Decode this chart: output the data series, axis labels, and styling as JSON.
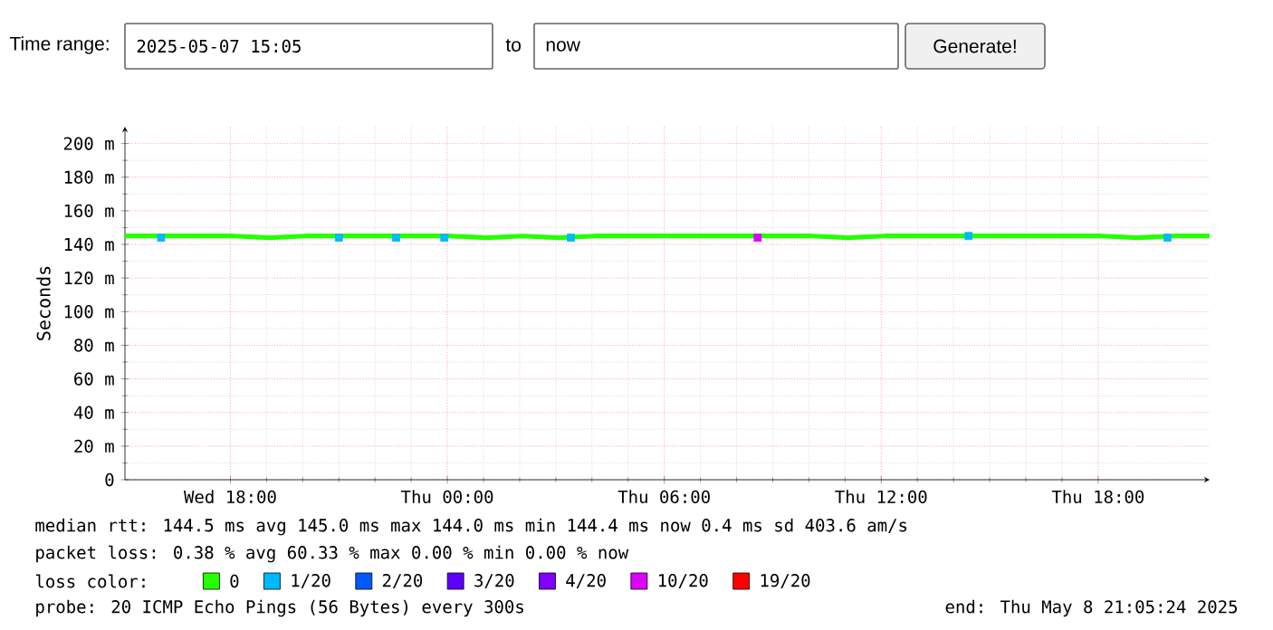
{
  "chart_data": {
    "type": "line",
    "ylabel": "Seconds",
    "legend_title": "loss color:",
    "legend": "bottom",
    "grid": true,
    "xlim": [
      "2025-05-07T15:05",
      "2025-05-08T21:05"
    ],
    "xticks": [
      {
        "value": "2025-05-07T18:00",
        "label": "Wed 18:00"
      },
      {
        "value": "2025-05-08T00:00",
        "label": "Thu 00:00"
      },
      {
        "value": "2025-05-08T06:00",
        "label": "Thu 06:00"
      },
      {
        "value": "2025-05-08T12:00",
        "label": "Thu 12:00"
      },
      {
        "value": "2025-05-08T18:00",
        "label": "Thu 18:00"
      }
    ],
    "ylim": [
      0,
      210
    ],
    "yticks": [
      0,
      {
        "value": 20,
        "label": "20 m"
      },
      {
        "value": 40,
        "label": "40 m"
      },
      {
        "value": 60,
        "label": "60 m"
      },
      {
        "value": 80,
        "label": "80 m"
      },
      {
        "value": 100,
        "label": "100 m"
      },
      {
        "value": 120,
        "label": "120 m"
      },
      {
        "value": 140,
        "label": "140 m"
      },
      {
        "value": 160,
        "label": "160 m"
      },
      {
        "value": 180,
        "label": "180 m"
      },
      {
        "value": 200,
        "label": "200 m"
      }
    ],
    "series": [
      {
        "name": "0",
        "color": "#26ff00",
        "x": [
          "2025-05-07T15:05",
          "2025-05-07T16:05",
          "2025-05-07T17:05",
          "2025-05-07T18:05",
          "2025-05-07T19:05",
          "2025-05-07T20:05",
          "2025-05-07T21:05",
          "2025-05-07T22:05",
          "2025-05-07T23:05",
          "2025-05-08T00:05",
          "2025-05-08T01:05",
          "2025-05-08T02:05",
          "2025-05-08T03:05",
          "2025-05-08T04:05",
          "2025-05-08T05:05",
          "2025-05-08T06:05",
          "2025-05-08T07:05",
          "2025-05-08T08:05",
          "2025-05-08T09:05",
          "2025-05-08T10:05",
          "2025-05-08T11:05",
          "2025-05-08T12:05",
          "2025-05-08T13:05",
          "2025-05-08T14:05",
          "2025-05-08T15:05",
          "2025-05-08T16:05",
          "2025-05-08T17:05",
          "2025-05-08T18:05",
          "2025-05-08T19:05",
          "2025-05-08T20:05",
          "2025-05-08T21:05"
        ],
        "values": [
          145,
          145,
          145,
          145,
          144,
          145,
          145,
          145,
          145,
          145,
          144,
          145,
          144,
          145,
          145,
          145,
          145,
          145,
          145,
          145,
          144,
          145,
          145,
          145,
          145,
          145,
          145,
          145,
          144,
          145,
          145
        ]
      },
      {
        "name": "1/20",
        "color": "#00b8ff",
        "type": "scatter",
        "marker": "square",
        "x": [
          "2025-05-07T16:05",
          "2025-05-07T21:00",
          "2025-05-07T22:35",
          "2025-05-07T23:55",
          "2025-05-08T03:25",
          "2025-05-08T14:25",
          "2025-05-08T19:55"
        ],
        "values": [
          144,
          144,
          144,
          144,
          144,
          145,
          144
        ]
      },
      {
        "name": "2/20",
        "color": "#0059ff",
        "type": "scatter"
      },
      {
        "name": "3/20",
        "color": "#5e00ff",
        "type": "scatter"
      },
      {
        "name": "4/20",
        "color": "#7e00ff",
        "type": "scatter"
      },
      {
        "name": "10/20",
        "color": "#dd00ff",
        "type": "scatter",
        "marker": "square",
        "x": [
          "2025-05-08T08:35"
        ],
        "values": [
          144
        ]
      },
      {
        "name": "19/20",
        "color": "#ff0000",
        "type": "scatter"
      }
    ],
    "annotations": [
      "Time range:",
      "2025-05-07 15:05",
      "to",
      "now",
      "Generate!",
      "median rtt: 144.5 ms avg  145.0 ms max  144.0 ms min  144.4 ms now  0.4 ms sd  403.6  am/s",
      "packet loss: 0.38 % avg  60.33 % max  0.00 % min  0.00 % now",
      "probe: 20 ICMP Echo Pings (56 Bytes) every 300s",
      "end: Thu May 8 21:05:24 2025"
    ]
  }
}
